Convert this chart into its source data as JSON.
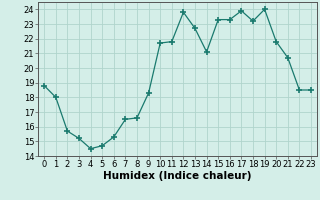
{
  "x": [
    0,
    1,
    2,
    3,
    4,
    5,
    6,
    7,
    8,
    9,
    10,
    11,
    12,
    13,
    14,
    15,
    16,
    17,
    18,
    19,
    20,
    21,
    22,
    23
  ],
  "y": [
    18.8,
    18.0,
    15.7,
    15.2,
    14.5,
    14.7,
    15.3,
    16.5,
    16.6,
    18.3,
    21.7,
    21.8,
    23.8,
    22.7,
    21.1,
    23.3,
    23.3,
    23.9,
    23.2,
    24.0,
    21.8,
    20.7,
    18.5,
    18.5
  ],
  "line_color": "#1a7a6e",
  "marker": "+",
  "marker_size": 4,
  "bg_color": "#d4eee8",
  "grid_color": "#b0d4cc",
  "xlabel": "Humidex (Indice chaleur)",
  "ylim": [
    14,
    24.5
  ],
  "xlim": [
    -0.5,
    23.5
  ],
  "yticks": [
    14,
    15,
    16,
    17,
    18,
    19,
    20,
    21,
    22,
    23,
    24
  ],
  "xticks": [
    0,
    1,
    2,
    3,
    4,
    5,
    6,
    7,
    8,
    9,
    10,
    11,
    12,
    13,
    14,
    15,
    16,
    17,
    18,
    19,
    20,
    21,
    22,
    23
  ],
  "font_size": 6.0,
  "label_font_size": 7.5
}
